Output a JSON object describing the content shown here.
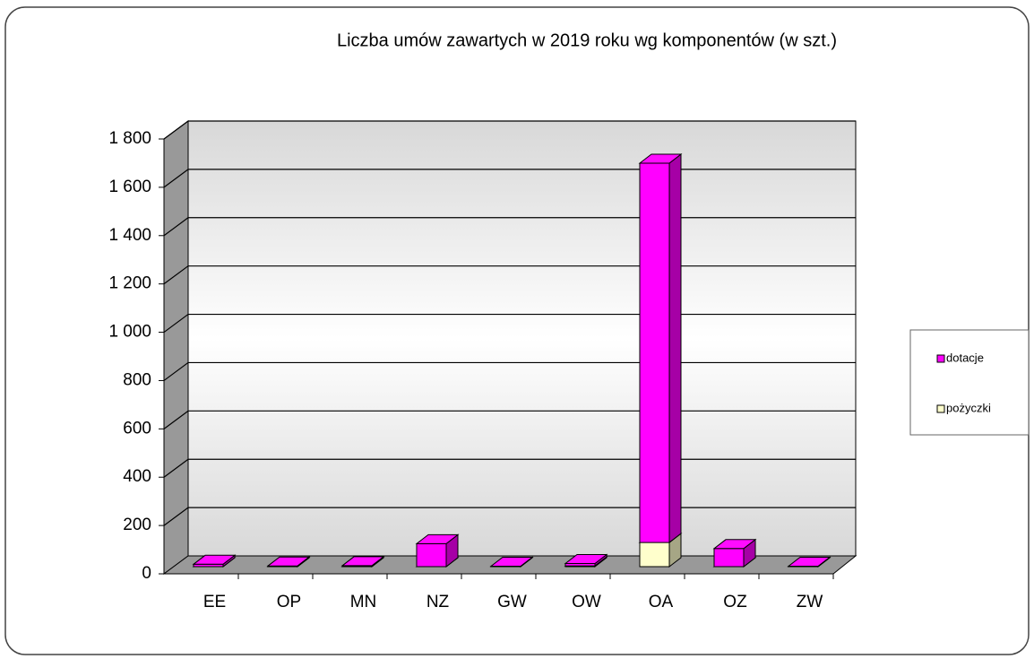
{
  "chart_data": {
    "type": "bar3d_stacked",
    "title": "Liczba umów zawartych w 2019 roku wg komponentów (w szt.)",
    "categories": [
      "EE",
      "OP",
      "MN",
      "NZ",
      "GW",
      "OW",
      "OA",
      "OZ",
      "ZW"
    ],
    "series": [
      {
        "name": "pożyczki",
        "color": "#ffffcc",
        "values": [
          0,
          0,
          0,
          0,
          0,
          3,
          100,
          0,
          0
        ]
      },
      {
        "name": "dotacje",
        "color": "#ff00ff",
        "values": [
          10,
          3,
          4,
          95,
          2,
          10,
          1570,
          75,
          2
        ]
      }
    ],
    "ylim": [
      0,
      1800
    ],
    "yticks": [
      0,
      200,
      400,
      600,
      800,
      {
        "value": 1000,
        "label": "1 000"
      },
      {
        "value": 1200,
        "label": "1 200"
      },
      {
        "value": 1400,
        "label": "1 400"
      },
      {
        "value": 1600,
        "label": "1 600"
      },
      {
        "value": 1800,
        "label": "1 800"
      }
    ],
    "grid": true,
    "legend_position": "right"
  }
}
